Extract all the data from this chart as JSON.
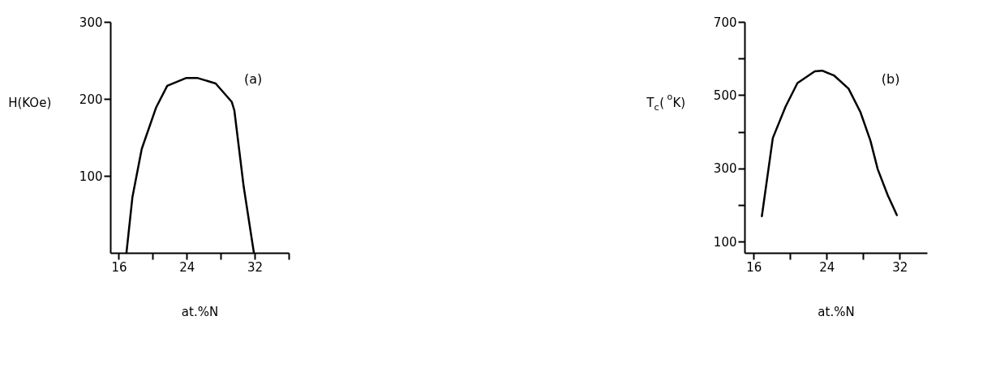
{
  "chart_data": [
    {
      "type": "line",
      "xlabel": "at.%N",
      "ylabel": "H(KOe)",
      "annotations": [
        "(a)"
      ],
      "series": [
        {
          "color": "#000000",
          "x": [
            16.9,
            17.6,
            18.7,
            20.4,
            21.7,
            23.9,
            25.3,
            27.4,
            29.3,
            29.6,
            30.7,
            31.9
          ],
          "values": [
            0,
            72,
            135,
            189,
            217,
            227,
            227,
            220,
            196,
            185,
            86,
            0
          ]
        }
      ],
      "xlim": [
        15,
        36
      ],
      "xticks": [
        16,
        {
          "value": 20,
          "label": null
        },
        24,
        {
          "value": 28,
          "label": null
        },
        32,
        {
          "value": 36,
          "label": null
        }
      ],
      "ylim": [
        0,
        300
      ],
      "yticks": [
        100,
        200,
        300
      ],
      "grid": false,
      "marker": "none",
      "line_style": "solid"
    },
    {
      "type": "line",
      "xlabel": "at.%N",
      "ylabel": "T$_{c}$($^{o}$K)",
      "annotations": [
        "(b)"
      ],
      "series": [
        {
          "color": "#000000",
          "x": [
            16.9,
            18.1,
            19.5,
            20.8,
            22.7,
            23.5,
            24.8,
            26.4,
            27.7,
            28.8,
            29.6,
            30.7,
            31.7
          ],
          "values": [
            170,
            383,
            469,
            533,
            565,
            567,
            554,
            518,
            454,
            376,
            298,
            227,
            173
          ]
        }
      ],
      "xlim": [
        15,
        35
      ],
      "xticks": [
        16,
        {
          "value": 20,
          "label": null
        },
        24,
        {
          "value": 28,
          "label": null
        },
        32
      ],
      "ylim": [
        70,
        700
      ],
      "yticks": [
        100,
        {
          "value": 200,
          "label": null
        },
        300,
        {
          "value": 400,
          "label": null
        },
        500,
        {
          "value": 600,
          "label": null
        },
        700
      ],
      "grid": false,
      "marker": "none",
      "line_style": "solid"
    }
  ]
}
